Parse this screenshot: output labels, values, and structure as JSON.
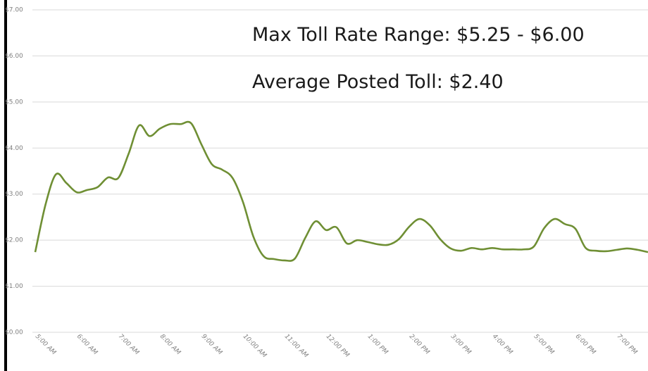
{
  "chart_data": {
    "type": "line",
    "annotations": [
      "Max Toll Rate Range: $5.25 - $6.00",
      "Average Posted Toll: $2.40"
    ],
    "categories": [
      "5:00 AM",
      null,
      null,
      null,
      "6:00 AM",
      null,
      null,
      null,
      "7:00 AM",
      null,
      null,
      null,
      "8:00 AM",
      null,
      null,
      null,
      "9:00 AM",
      null,
      null,
      null,
      "10:00 AM",
      null,
      null,
      null,
      "11:00 AM",
      null,
      null,
      null,
      "12:00 PM",
      null,
      null,
      null,
      "1:00 PM",
      null,
      null,
      null,
      "2:00 PM",
      null,
      null,
      null,
      "3:00 PM",
      null,
      null,
      null,
      "4:00 PM",
      null,
      null,
      null,
      "5:00 PM",
      null,
      null,
      null,
      "6:00 PM",
      null,
      null,
      null,
      "7:00 PM",
      null,
      null,
      null
    ],
    "values": [
      1.74,
      2.78,
      3.43,
      3.24,
      3.04,
      3.09,
      3.15,
      3.36,
      3.35,
      3.88,
      4.49,
      4.26,
      4.42,
      4.52,
      4.52,
      4.54,
      4.08,
      3.65,
      3.53,
      3.35,
      2.83,
      2.08,
      1.65,
      1.59,
      1.56,
      1.6,
      2.05,
      2.41,
      2.22,
      2.28,
      1.93,
      2.0,
      1.96,
      1.91,
      1.9,
      2.02,
      2.29,
      2.46,
      2.32,
      2.02,
      1.82,
      1.77,
      1.83,
      1.8,
      1.83,
      1.8,
      1.8,
      1.8,
      1.86,
      2.26,
      2.46,
      2.35,
      2.25,
      1.83,
      1.77,
      1.76,
      1.79,
      1.82,
      1.79,
      1.74
    ],
    "color": "#6f8f34",
    "ylim": [
      0,
      7
    ],
    "yticks": [
      {
        "value": 0,
        "label": "$0.00"
      },
      {
        "value": 1,
        "label": "$1.00"
      },
      {
        "value": 2,
        "label": "$2.00"
      },
      {
        "value": 3,
        "label": "$3.00"
      },
      {
        "value": 4,
        "label": "$4.00"
      },
      {
        "value": 5,
        "label": "$5.00"
      },
      {
        "value": 6,
        "label": "$6.00"
      },
      {
        "value": 7,
        "label": "$7.00"
      }
    ],
    "grid": true
  }
}
